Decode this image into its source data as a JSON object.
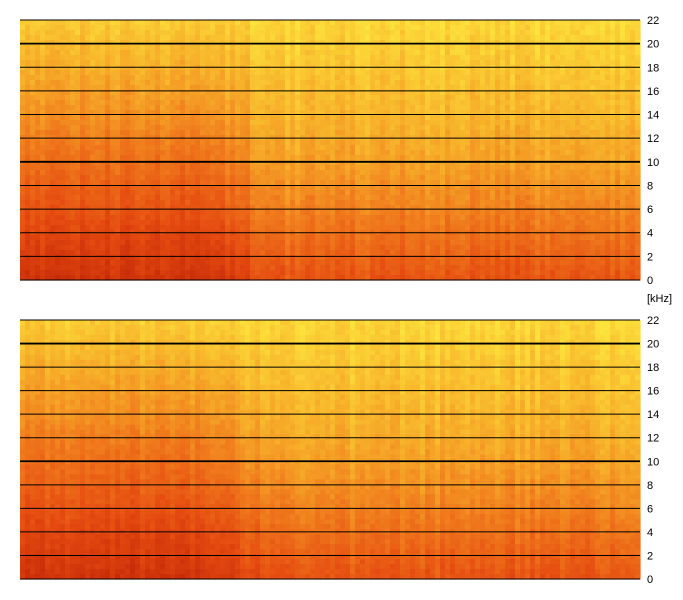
{
  "chart_data": [
    {
      "type": "heatmap",
      "channel": "upper",
      "title": "",
      "ylabel": "",
      "unit": "[kHz]",
      "ylim": [
        0,
        22
      ],
      "y_ticks": [
        0,
        2,
        4,
        6,
        8,
        10,
        12,
        14,
        16,
        18,
        20,
        22
      ],
      "bold_grid_kHz": [
        10,
        20
      ],
      "grid": true,
      "colormap": [
        "#c62a08",
        "#e54a10",
        "#f07a1c",
        "#f7b12a",
        "#fde43c"
      ],
      "intensity_profile": {
        "y_kHz": [
          0,
          1,
          3,
          6,
          10,
          14,
          18,
          22
        ],
        "early_section": [
          0.06,
          0.12,
          0.18,
          0.3,
          0.44,
          0.6,
          0.74,
          0.88
        ],
        "late_section": [
          0.3,
          0.34,
          0.42,
          0.54,
          0.68,
          0.78,
          0.86,
          0.94
        ]
      }
    },
    {
      "type": "heatmap",
      "channel": "lower",
      "title": "",
      "ylabel": "",
      "ylim": [
        0,
        22
      ],
      "y_ticks": [
        0,
        2,
        4,
        6,
        8,
        10,
        12,
        14,
        16,
        18,
        20,
        22
      ],
      "bold_grid_kHz": [
        10,
        20
      ],
      "grid": true,
      "colormap": [
        "#c62a08",
        "#e54a10",
        "#f07a1c",
        "#f7b12a",
        "#fde43c"
      ],
      "intensity_profile": {
        "y_kHz": [
          0,
          1,
          3,
          6,
          10,
          14,
          18,
          22
        ],
        "early_section": [
          0.06,
          0.12,
          0.18,
          0.3,
          0.44,
          0.6,
          0.74,
          0.88
        ],
        "late_section": [
          0.3,
          0.34,
          0.42,
          0.54,
          0.68,
          0.78,
          0.86,
          0.94
        ]
      }
    }
  ]
}
